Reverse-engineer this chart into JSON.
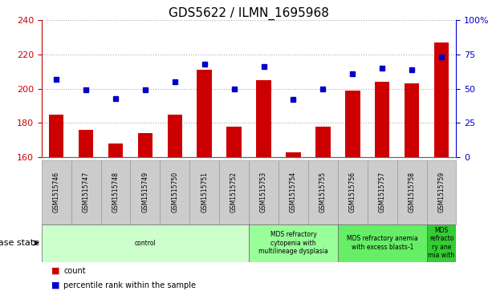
{
  "title": "GDS5622 / ILMN_1695968",
  "samples": [
    "GSM1515746",
    "GSM1515747",
    "GSM1515748",
    "GSM1515749",
    "GSM1515750",
    "GSM1515751",
    "GSM1515752",
    "GSM1515753",
    "GSM1515754",
    "GSM1515755",
    "GSM1515756",
    "GSM1515757",
    "GSM1515758",
    "GSM1515759"
  ],
  "counts": [
    185,
    176,
    168,
    174,
    185,
    211,
    178,
    205,
    163,
    178,
    199,
    204,
    203,
    227
  ],
  "percentile_ranks": [
    57,
    49,
    43,
    49,
    55,
    68,
    50,
    66,
    42,
    50,
    61,
    65,
    64,
    73
  ],
  "ylim_left": [
    160,
    240
  ],
  "ylim_right": [
    0,
    100
  ],
  "yticks_left": [
    160,
    180,
    200,
    220,
    240
  ],
  "yticks_right": [
    0,
    25,
    50,
    75,
    100
  ],
  "bar_color": "#cc0000",
  "dot_color": "#0000cc",
  "grid_color": "#aaaaaa",
  "disease_groups": [
    {
      "label": "control",
      "start": 0,
      "end": 7,
      "color": "#ccffcc"
    },
    {
      "label": "MDS refractory\ncytopenia with\nmultilineage dysplasia",
      "start": 7,
      "end": 10,
      "color": "#99ff99"
    },
    {
      "label": "MDS refractory anemia\nwith excess blasts-1",
      "start": 10,
      "end": 13,
      "color": "#66ee66"
    },
    {
      "label": "MDS\nrefracto\nry ane\nmia with",
      "start": 13,
      "end": 14,
      "color": "#33cc33"
    }
  ],
  "disease_state_label": "disease state",
  "legend_count": "count",
  "legend_percentile": "percentile rank within the sample",
  "background_color": "#ffffff",
  "bar_width": 0.5,
  "sample_cell_color": "#cccccc",
  "sample_cell_edge": "#999999",
  "title_fontsize": 11,
  "tick_fontsize": 8,
  "sample_fontsize": 5.5,
  "disease_fontsize": 5.5,
  "legend_fontsize": 7
}
